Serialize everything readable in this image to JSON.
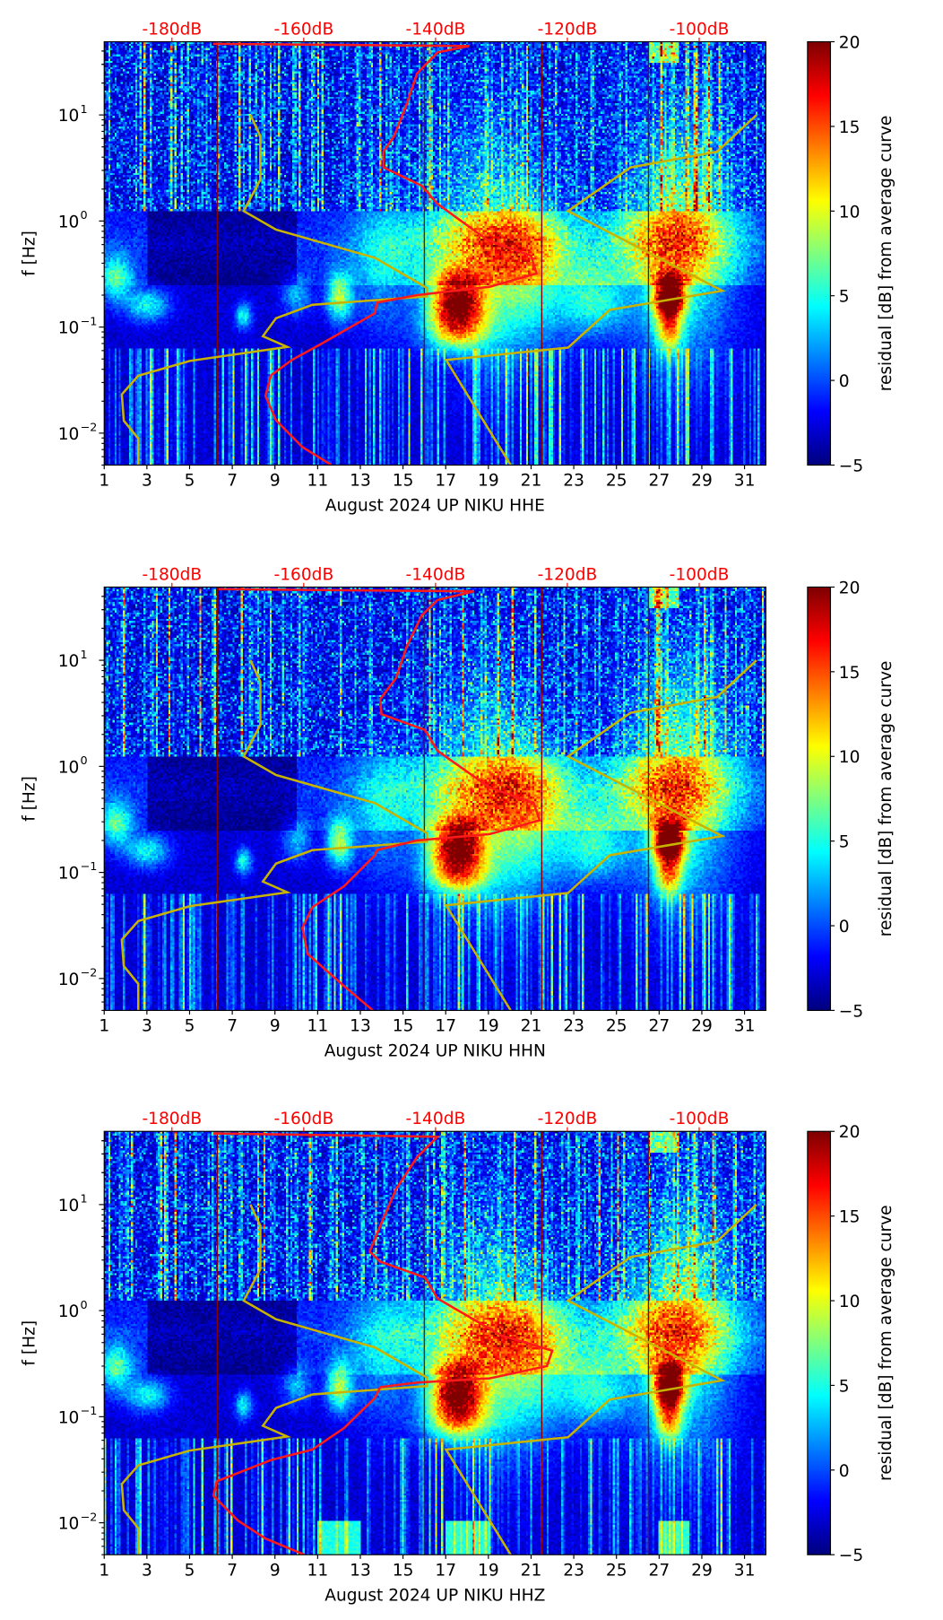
{
  "chart_data": [
    {
      "type": "heatmap",
      "title": "",
      "xlabel": "August 2024 UP NIKU  HHE",
      "ylabel": "f [Hz]",
      "colorbar_label": "residual [dB] from average curve",
      "xlim": [
        1,
        32
      ],
      "ylim_hz": [
        0.005,
        49
      ],
      "yscale": "log",
      "x_ticks": [
        "1",
        "3",
        "5",
        "7",
        "9",
        "11",
        "13",
        "15",
        "17",
        "19",
        "21",
        "23",
        "25",
        "27",
        "29",
        "31"
      ],
      "y_ticks": [
        {
          "v": 10,
          "label": "10",
          "exp": "1"
        },
        {
          "v": 1,
          "label": "10",
          "exp": "0"
        },
        {
          "v": 0.1,
          "label": "10",
          "exp": "−1"
        },
        {
          "v": 0.01,
          "label": "10",
          "exp": "−2"
        }
      ],
      "top_axis_db": [
        "-180dB",
        "-160dB",
        "-140dB",
        "-120dB",
        "-100dB"
      ],
      "colorbar_range": [
        -5,
        20
      ],
      "colorbar_ticks": [
        "−5",
        "0",
        "5",
        "10",
        "15",
        "20"
      ],
      "mean_psd_curve_db_vs_hz": [
        [
          -155.8,
          0.005
        ],
        [
          -160.2,
          0.0074
        ],
        [
          -164.2,
          0.0132
        ],
        [
          -165.8,
          0.0224
        ],
        [
          -165.0,
          0.035
        ],
        [
          -161.8,
          0.049
        ],
        [
          -157.4,
          0.069
        ],
        [
          -149.2,
          0.135
        ],
        [
          -148.9,
          0.17
        ],
        [
          -142.8,
          0.2
        ],
        [
          -131.8,
          0.24
        ],
        [
          -124.7,
          0.32
        ],
        [
          -125.5,
          0.47
        ],
        [
          -132.1,
          0.66
        ],
        [
          -139.7,
          1.45
        ],
        [
          -142.1,
          2.15
        ],
        [
          -147.9,
          3.2
        ],
        [
          -147.9,
          4.5
        ],
        [
          -146.3,
          6.3
        ],
        [
          -144.4,
          12.6
        ],
        [
          -142.8,
          24.6
        ],
        [
          -139.7,
          38.9
        ],
        [
          -134.9,
          44.7
        ],
        [
          -173.7,
          46.8
        ]
      ]
    },
    {
      "type": "heatmap",
      "title": "",
      "xlabel": "August 2024 UP NIKU  HHN",
      "ylabel": "f [Hz]",
      "colorbar_label": "residual [dB] from average curve",
      "xlim": [
        1,
        32
      ],
      "ylim_hz": [
        0.005,
        49
      ],
      "yscale": "log",
      "x_ticks": [
        "1",
        "3",
        "5",
        "7",
        "9",
        "11",
        "13",
        "15",
        "17",
        "19",
        "21",
        "23",
        "25",
        "27",
        "29",
        "31"
      ],
      "y_ticks": [
        {
          "v": 10,
          "label": "10",
          "exp": "1"
        },
        {
          "v": 1,
          "label": "10",
          "exp": "0"
        },
        {
          "v": 0.1,
          "label": "10",
          "exp": "−1"
        },
        {
          "v": 0.01,
          "label": "10",
          "exp": "−2"
        }
      ],
      "top_axis_db": [
        "-180dB",
        "-160dB",
        "-140dB",
        "-120dB",
        "-100dB"
      ],
      "colorbar_range": [
        -5,
        20
      ],
      "colorbar_ticks": [
        "−5",
        "0",
        "5",
        "10",
        "15",
        "20"
      ],
      "mean_psd_curve_db_vs_hz": [
        [
          -149.5,
          0.005
        ],
        [
          -153.9,
          0.0085
        ],
        [
          -159.4,
          0.017
        ],
        [
          -160.2,
          0.03
        ],
        [
          -158.7,
          0.047
        ],
        [
          -153.9,
          0.074
        ],
        [
          -149.2,
          0.145
        ],
        [
          -148.9,
          0.162
        ],
        [
          -142.8,
          0.2
        ],
        [
          -131.8,
          0.23
        ],
        [
          -124.2,
          0.31
        ],
        [
          -125.1,
          0.45
        ],
        [
          -131.8,
          0.63
        ],
        [
          -139.7,
          1.4
        ],
        [
          -141.6,
          2.2
        ],
        [
          -148.2,
          3.1
        ],
        [
          -148.4,
          4.3
        ],
        [
          -146.0,
          6.8
        ],
        [
          -144.4,
          13.4
        ],
        [
          -142.1,
          26.5
        ],
        [
          -139.7,
          37
        ],
        [
          -134.2,
          44.7
        ],
        [
          -172.9,
          46.8
        ]
      ]
    },
    {
      "type": "heatmap",
      "title": "",
      "xlabel": "August 2024 UP NIKU  HHZ",
      "ylabel": "f [Hz]",
      "colorbar_label": "residual [dB] from average curve",
      "xlim": [
        1,
        32
      ],
      "ylim_hz": [
        0.005,
        49
      ],
      "yscale": "log",
      "x_ticks": [
        "1",
        "3",
        "5",
        "7",
        "9",
        "11",
        "13",
        "15",
        "17",
        "19",
        "21",
        "23",
        "25",
        "27",
        "29",
        "31"
      ],
      "y_ticks": [
        {
          "v": 10,
          "label": "10",
          "exp": "1"
        },
        {
          "v": 1,
          "label": "10",
          "exp": "0"
        },
        {
          "v": 0.1,
          "label": "10",
          "exp": "−1"
        },
        {
          "v": 0.01,
          "label": "10",
          "exp": "−2"
        }
      ],
      "top_axis_db": [
        "-180dB",
        "-160dB",
        "-140dB",
        "-120dB",
        "-100dB"
      ],
      "colorbar_range": [
        -5,
        20
      ],
      "colorbar_ticks": [
        "−5",
        "0",
        "5",
        "10",
        "15",
        "20"
      ],
      "mean_psd_curve_db_vs_hz": [
        [
          -159.9,
          0.005
        ],
        [
          -165.8,
          0.0071
        ],
        [
          -170.0,
          0.0105
        ],
        [
          -173.7,
          0.018
        ],
        [
          -173.2,
          0.0246
        ],
        [
          -165.0,
          0.039
        ],
        [
          -158.7,
          0.049
        ],
        [
          -153.9,
          0.078
        ],
        [
          -149.2,
          0.15
        ],
        [
          -148.4,
          0.19
        ],
        [
          -142.8,
          0.21
        ],
        [
          -131.8,
          0.23
        ],
        [
          -123.1,
          0.3
        ],
        [
          -122.3,
          0.42
        ],
        [
          -130.2,
          0.59
        ],
        [
          -139.7,
          1.3
        ],
        [
          -141.6,
          2.05
        ],
        [
          -148.4,
          2.9
        ],
        [
          -150.0,
          3.6
        ],
        [
          -148.4,
          6.3
        ],
        [
          -146.0,
          14
        ],
        [
          -142.8,
          28
        ],
        [
          -139.7,
          43.7
        ],
        [
          -173.7,
          46.8
        ]
      ]
    }
  ],
  "noise_models": {
    "low_noise_model_db_vs_hz": [
      [
        -185.1,
        0.005
      ],
      [
        -185.1,
        0.0089
      ],
      [
        -187.3,
        0.0131
      ],
      [
        -187.6,
        0.0232
      ],
      [
        -185.1,
        0.0348
      ],
      [
        -177.3,
        0.048
      ],
      [
        -162.5,
        0.065
      ],
      [
        -166.2,
        0.082
      ],
      [
        -164.2,
        0.121
      ],
      [
        -158.7,
        0.162
      ],
      [
        -141.3,
        0.195
      ],
      [
        -141.3,
        0.234
      ],
      [
        -149.2,
        0.45
      ],
      [
        -164.2,
        0.83
      ],
      [
        -169.1,
        1.24
      ],
      [
        -166.6,
        2.45
      ],
      [
        -166.6,
        6.3
      ],
      [
        -168.1,
        10
      ]
    ],
    "high_noise_model_db_vs_hz": [
      [
        -128.6,
        0.005
      ],
      [
        -138.4,
        0.049
      ],
      [
        -119.9,
        0.064
      ],
      [
        -113.6,
        0.145
      ],
      [
        -96.5,
        0.22
      ],
      [
        -119.9,
        1.24
      ],
      [
        -110.4,
        3.2
      ],
      [
        -97.3,
        4.5
      ],
      [
        -91.3,
        10
      ]
    ]
  },
  "marker_days": [
    6.3,
    16.0,
    21.5,
    26.5
  ],
  "colors": {
    "curve": "#ff1a1a",
    "noise_model": "#c8b400",
    "db_label": "#ff0000",
    "marker_line": "#8b0000"
  }
}
